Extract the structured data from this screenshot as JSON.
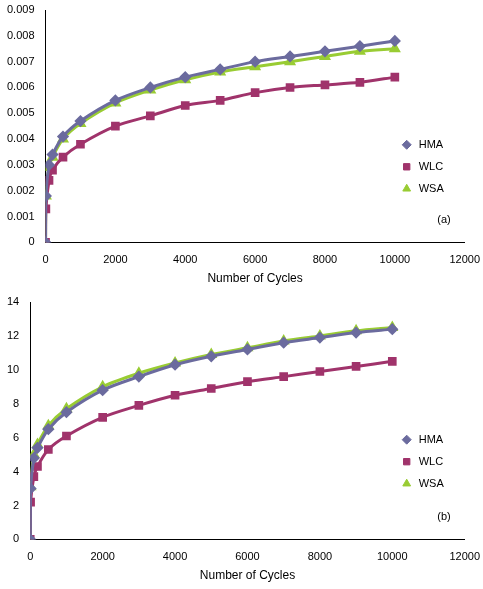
{
  "chart_data": [
    {
      "type": "line",
      "annotation": "(a)",
      "x_label": "Number of Cycles",
      "x": [
        0,
        10,
        100,
        200,
        500,
        1000,
        2000,
        3000,
        4000,
        5000,
        6000,
        7000,
        8000,
        9000,
        10000
      ],
      "series": [
        {
          "name": "HMA",
          "color": "#6b6b9e",
          "marker": "diamond",
          "values": [
            0,
            0.0018,
            0.003,
            0.0034,
            0.0041,
            0.0047,
            0.0055,
            0.006,
            0.0064,
            0.0067,
            0.007,
            0.0072,
            0.0074,
            0.0076,
            0.0078
          ]
        },
        {
          "name": "WLC",
          "color": "#a0336b",
          "marker": "square",
          "values": [
            0,
            0.0013,
            0.0024,
            0.0028,
            0.0033,
            0.0038,
            0.0045,
            0.0049,
            0.0053,
            0.0055,
            0.0058,
            0.006,
            0.0061,
            0.0062,
            0.0064
          ]
        },
        {
          "name": "WSA",
          "color": "#99cc33",
          "marker": "triangle",
          "values": [
            0,
            0.0018,
            0.0029,
            0.0033,
            0.004,
            0.0046,
            0.0054,
            0.0059,
            0.0063,
            0.0066,
            0.0068,
            0.007,
            0.0072,
            0.0074,
            0.0075
          ]
        }
      ],
      "xlim": [
        0,
        12000
      ],
      "xticks": [
        0,
        2000,
        4000,
        6000,
        8000,
        10000,
        12000
      ],
      "ylim": [
        0,
        0.009
      ],
      "yticks": [
        0,
        0.001,
        0.002,
        0.003,
        0.004,
        0.005,
        0.006,
        0.007,
        0.008,
        0.009
      ],
      "grid": false,
      "legend": "right"
    },
    {
      "type": "line",
      "annotation": "(b)",
      "x_label": "Number of Cycles",
      "x": [
        0,
        10,
        100,
        200,
        500,
        1000,
        2000,
        3000,
        4000,
        5000,
        6000,
        7000,
        8000,
        9000,
        10000
      ],
      "series": [
        {
          "name": "HMA",
          "color": "#6b6b9e",
          "marker": "diamond",
          "values": [
            0,
            3,
            4.8,
            5.4,
            6.5,
            7.5,
            8.8,
            9.6,
            10.3,
            10.8,
            11.2,
            11.6,
            11.9,
            12.2,
            12.4
          ]
        },
        {
          "name": "WLC",
          "color": "#a0336b",
          "marker": "square",
          "values": [
            0,
            2.2,
            3.7,
            4.3,
            5.3,
            6.1,
            7.2,
            7.9,
            8.5,
            8.9,
            9.3,
            9.6,
            9.9,
            10.2,
            10.5
          ]
        },
        {
          "name": "WSA",
          "color": "#99cc33",
          "marker": "triangle",
          "values": [
            0,
            3.1,
            5,
            5.6,
            6.7,
            7.7,
            9,
            9.8,
            10.4,
            10.9,
            11.3,
            11.7,
            12,
            12.3,
            12.5
          ]
        }
      ],
      "xlim": [
        0,
        12000
      ],
      "xticks": [
        0,
        2000,
        4000,
        6000,
        8000,
        10000,
        12000
      ],
      "ylim": [
        0,
        14
      ],
      "yticks": [
        0,
        2,
        4,
        6,
        8,
        10,
        12,
        14
      ],
      "grid": false,
      "legend": "right"
    }
  ]
}
